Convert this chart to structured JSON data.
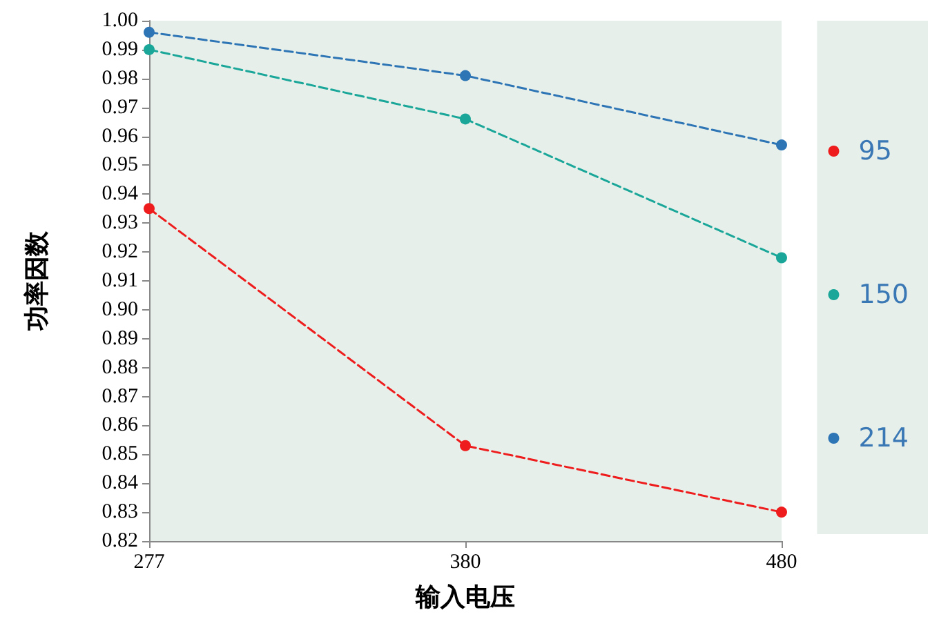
{
  "chart_data": {
    "type": "line",
    "xlabel": "输入电压",
    "ylabel": "功率因数",
    "categories": [
      "277",
      "380",
      "480"
    ],
    "series": [
      {
        "name": "95",
        "color": "#ee1c1c",
        "values": [
          0.935,
          0.853,
          0.83
        ]
      },
      {
        "name": "150",
        "color": "#1aa79a",
        "values": [
          0.99,
          0.966,
          0.918
        ]
      },
      {
        "name": "214",
        "color": "#2e75b6",
        "values": [
          0.996,
          0.981,
          0.957
        ]
      }
    ],
    "ylim": [
      0.82,
      1.0
    ],
    "yticks": [
      0.82,
      0.83,
      0.84,
      0.85,
      0.86,
      0.87,
      0.88,
      0.89,
      {
        "value": 0.9,
        "label": "0.90"
      },
      0.91,
      0.92,
      0.93,
      0.94,
      0.95,
      0.96,
      0.97,
      0.98,
      0.99,
      {
        "value": 1.0,
        "label": "1.00"
      }
    ],
    "grid": false,
    "legend": "right",
    "marker": "circle",
    "line_style": "dashed"
  }
}
